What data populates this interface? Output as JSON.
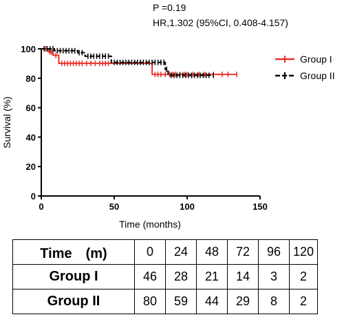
{
  "stats": {
    "p_value": "P =0.19",
    "hazard_ratio": "HR,1.302 (95%CI, 0.408-4.157)"
  },
  "chart_data": {
    "type": "line",
    "title": "",
    "xlabel": "Time (months)",
    "ylabel": "Survival (%)",
    "xlim": [
      0,
      150
    ],
    "ylim": [
      0,
      100
    ],
    "xticks": [
      0,
      50,
      100,
      150
    ],
    "yticks": [
      0,
      20,
      40,
      60,
      80,
      100
    ],
    "grid": false,
    "legend_position": "top-right",
    "series": [
      {
        "name": "Group I",
        "color": "#e8302a",
        "dash": "solid",
        "steps": [
          [
            0,
            100
          ],
          [
            5,
            97.8
          ],
          [
            8,
            95.6
          ],
          [
            12,
            90.1
          ],
          [
            76,
            82.6
          ],
          [
            134,
            82.6
          ]
        ],
        "censors": [
          3,
          4,
          6,
          7,
          10,
          14,
          16,
          18,
          20,
          22,
          24,
          26,
          28,
          31,
          34,
          37,
          40,
          42,
          44,
          46,
          78,
          80,
          82,
          85,
          88,
          90,
          92,
          95,
          98,
          100,
          104,
          108,
          112,
          118,
          124,
          128,
          134
        ]
      },
      {
        "name": "Group II",
        "color": "#000000",
        "dash": "dashed",
        "steps": [
          [
            0,
            100
          ],
          [
            9,
            98.7
          ],
          [
            25,
            97.4
          ],
          [
            30,
            95.0
          ],
          [
            48,
            90.8
          ],
          [
            85,
            86.0
          ],
          [
            87,
            82.0
          ],
          [
            118,
            82.0
          ]
        ],
        "censors": [
          2,
          4,
          6,
          8,
          11,
          13,
          15,
          17,
          19,
          21,
          23,
          26,
          28,
          32,
          34,
          36,
          38,
          40,
          42,
          44,
          46,
          50,
          52,
          54,
          56,
          58,
          60,
          62,
          64,
          66,
          68,
          70,
          72,
          74,
          76,
          78,
          80,
          82,
          84,
          86,
          89,
          91,
          93,
          95,
          97,
          99,
          101,
          103,
          105,
          107,
          109,
          111,
          113,
          115,
          118
        ]
      }
    ]
  },
  "risk_table": {
    "header_label": "Time　(m)",
    "times": [
      "0",
      "24",
      "48",
      "72",
      "96",
      "120"
    ],
    "rows": [
      {
        "label": "Group I",
        "values": [
          "46",
          "28",
          "21",
          "14",
          "3",
          "2"
        ]
      },
      {
        "label": "Group II",
        "values": [
          "80",
          "59",
          "44",
          "29",
          "8",
          "2"
        ]
      }
    ]
  }
}
